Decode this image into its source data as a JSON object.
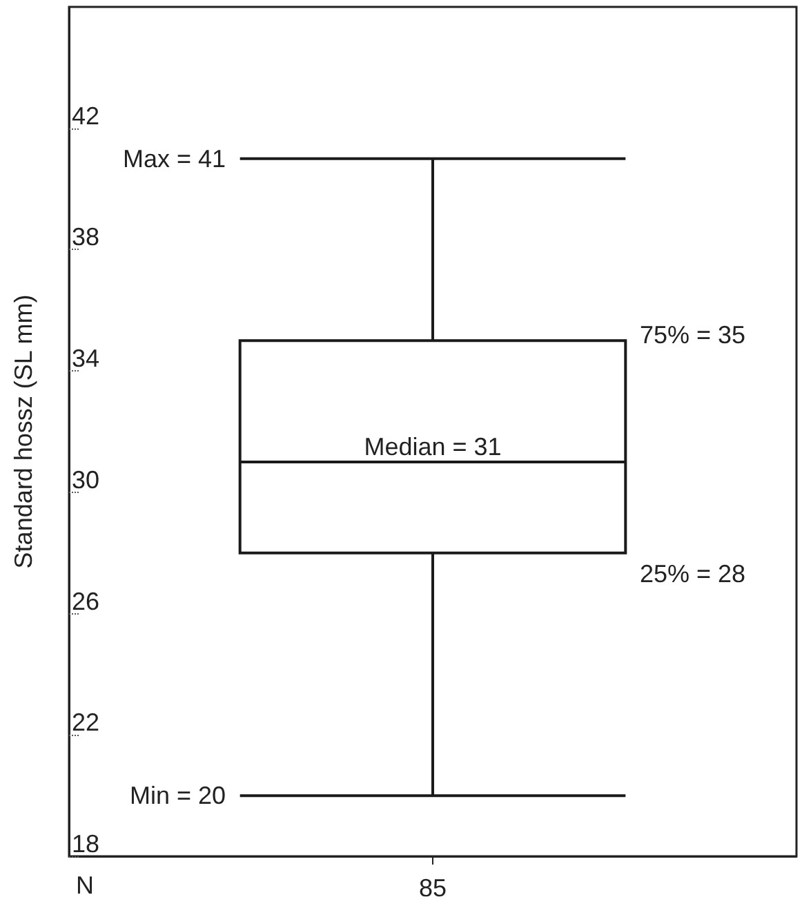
{
  "chart_data": {
    "type": "box",
    "ylabel": "Standard hossz (SL mm)",
    "xlabel": "N",
    "categories": [
      "85"
    ],
    "boxes": [
      {
        "low": 20,
        "q1": 28,
        "median": 31,
        "q3": 35,
        "high": 41
      }
    ],
    "ylim": [
      18,
      46
    ],
    "yticks": [
      18,
      22,
      26,
      30,
      34,
      38,
      42
    ],
    "grid": false,
    "color": "#1a1a1a",
    "annotations": [
      "Max = 41",
      "75% = 35",
      "Median = 31",
      "25% = 28",
      "Min = 20"
    ]
  }
}
